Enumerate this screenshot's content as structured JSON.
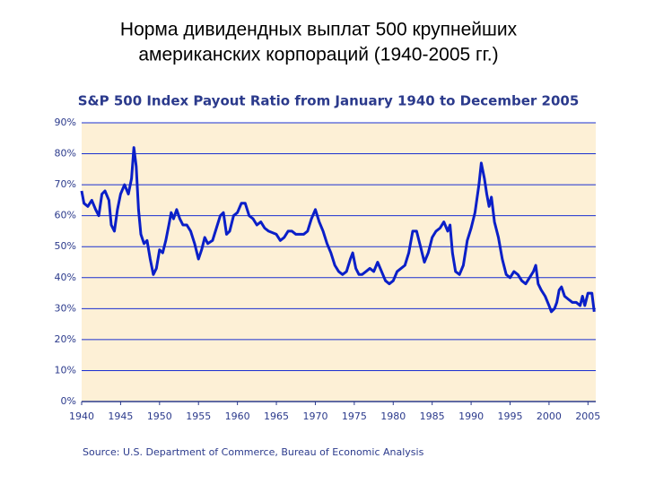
{
  "slide_title": [
    "Норма дивидендных выплат 500 крупнейших",
    "американских корпораций (1940-2005 гг.)"
  ],
  "chart_data": {
    "type": "line",
    "title": "S&P 500 Index Payout Ratio from January 1940 to December 2005",
    "source": "Source: U.S. Department of Commerce, Bureau of Economic Analysis",
    "xlim": [
      1940,
      2006
    ],
    "xticks": [
      1940,
      1945,
      1950,
      1955,
      1960,
      1965,
      1970,
      1975,
      1980,
      1985,
      1990,
      1995,
      2000,
      2005
    ],
    "ylim": [
      0,
      90
    ],
    "yticks": [
      {
        "value": 0,
        "label": "0%"
      },
      {
        "value": 10,
        "label": "10%"
      },
      {
        "value": 20,
        "label": "20%"
      },
      {
        "value": 30,
        "label": "30%"
      },
      {
        "value": 40,
        "label": "40%"
      },
      {
        "value": 50,
        "label": "50%"
      },
      {
        "value": 60,
        "label": "60%"
      },
      {
        "value": 70,
        "label": "70%"
      },
      {
        "value": 80,
        "label": "80%"
      },
      {
        "value": 90,
        "label": "90%"
      }
    ],
    "grid": true,
    "series": [
      {
        "color": "#0a1fc8",
        "x": [
          1940,
          1940.3,
          1940.8,
          1941.3,
          1941.8,
          1942.2,
          1942.6,
          1943,
          1943.5,
          1943.8,
          1944.2,
          1944.6,
          1945,
          1945.5,
          1946,
          1946.4,
          1946.7,
          1947,
          1947.3,
          1947.6,
          1948,
          1948.4,
          1948.8,
          1949.2,
          1949.6,
          1950,
          1950.4,
          1950.8,
          1951.2,
          1951.5,
          1951.8,
          1952.2,
          1952.6,
          1953,
          1953.5,
          1954,
          1954.5,
          1955,
          1955.4,
          1955.8,
          1956.2,
          1956.8,
          1957.3,
          1957.8,
          1958.2,
          1958.6,
          1959,
          1959.5,
          1960,
          1960.5,
          1961,
          1961.5,
          1962,
          1962.5,
          1963,
          1963.5,
          1964,
          1965,
          1965.5,
          1966,
          1966.5,
          1967,
          1967.5,
          1968,
          1968.5,
          1969,
          1969.5,
          1970,
          1970.5,
          1971,
          1971.5,
          1972,
          1972.5,
          1973,
          1973.5,
          1974,
          1974.5,
          1974.8,
          1975.2,
          1975.6,
          1976,
          1976.5,
          1977,
          1977.5,
          1978,
          1978.5,
          1979,
          1979.5,
          1980,
          1980.5,
          1981,
          1981.5,
          1982,
          1982.5,
          1983,
          1983.5,
          1984,
          1984.5,
          1985,
          1985.5,
          1986,
          1986.5,
          1987,
          1987.3,
          1987.6,
          1988,
          1988.5,
          1989,
          1989.5,
          1990,
          1990.5,
          1991,
          1991.3,
          1991.7,
          1992,
          1992.3,
          1992.6,
          1993,
          1993.5,
          1994,
          1994.5,
          1995,
          1995.5,
          1996,
          1996.5,
          1997,
          1997.5,
          1998,
          1998.3,
          1998.6,
          1999,
          1999.5,
          2000,
          2000.3,
          2000.7,
          2001,
          2001.3,
          2001.6,
          2002,
          2002.5,
          2003,
          2003.5,
          2004,
          2004.3,
          2004.6,
          2005,
          2005.5,
          2005.8
        ],
        "values": [
          68,
          64,
          63,
          65,
          62,
          60,
          67,
          68,
          65,
          57,
          55,
          62,
          67,
          70,
          67,
          72,
          82,
          76,
          62,
          54,
          51,
          52,
          46,
          41,
          43,
          49,
          48,
          52,
          57,
          61,
          59,
          62,
          59,
          57,
          57,
          55,
          51,
          46,
          49,
          53,
          51,
          52,
          56,
          60,
          61,
          54,
          55,
          60,
          61,
          64,
          64,
          60,
          59,
          57,
          58,
          56,
          55,
          54,
          52,
          53,
          55,
          55,
          54,
          54,
          54,
          55,
          59,
          62,
          58,
          55,
          51,
          48,
          44,
          42,
          41,
          42,
          46,
          48,
          43,
          41,
          41,
          42,
          43,
          42,
          45,
          42,
          39,
          38,
          39,
          42,
          43,
          44,
          48,
          55,
          55,
          50,
          45,
          48,
          53,
          55,
          56,
          58,
          55,
          57,
          48,
          42,
          41,
          44,
          52,
          56,
          61,
          70,
          77,
          72,
          67,
          63,
          66,
          58,
          53,
          46,
          41,
          40,
          42,
          41,
          39,
          38,
          40,
          42,
          44,
          38,
          36,
          34,
          31,
          29,
          30,
          32,
          36,
          37,
          34,
          33,
          32,
          32,
          31,
          34,
          31,
          35,
          35,
          29
        ]
      }
    ]
  }
}
